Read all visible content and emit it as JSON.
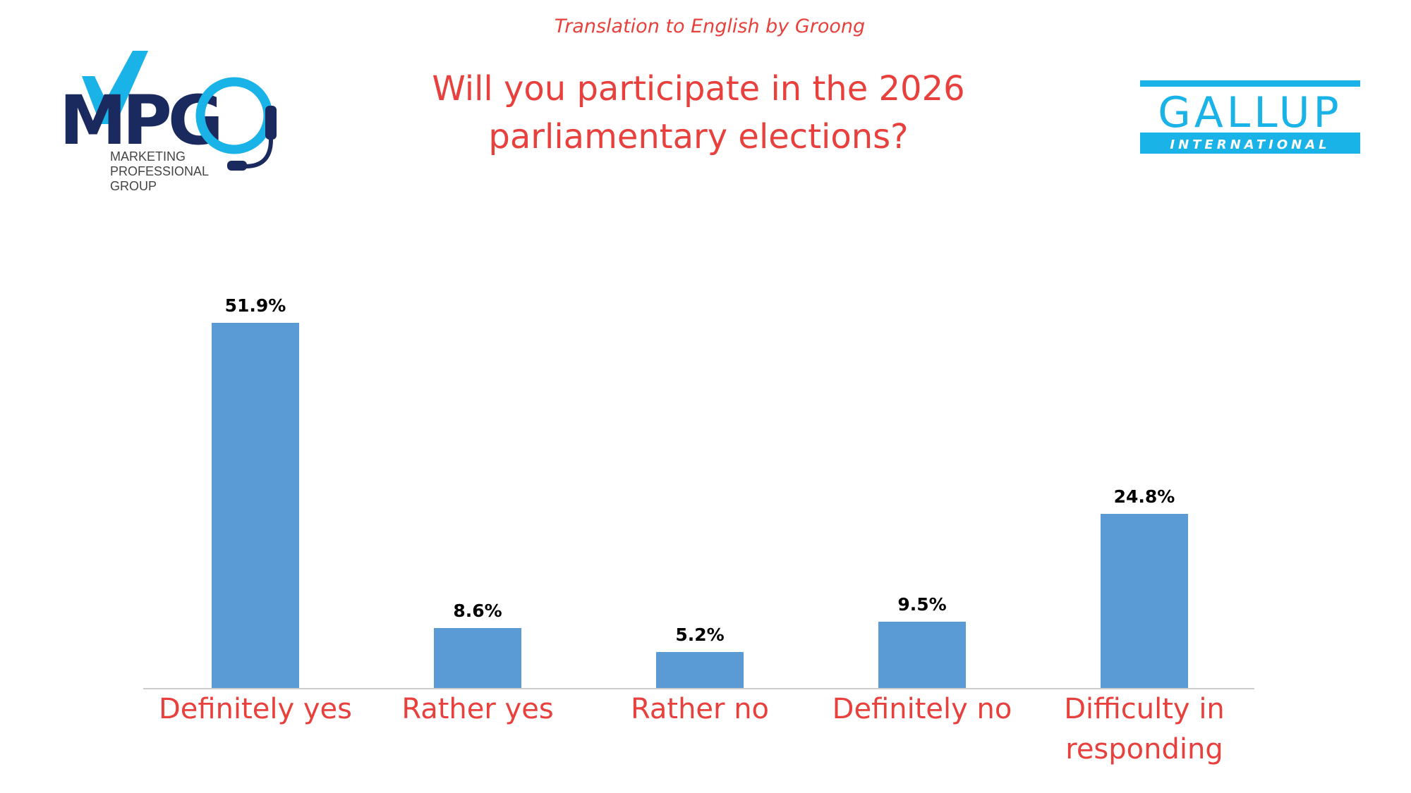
{
  "header": {
    "credit": "Translation to English by Groong",
    "title_line1": "Will you participate in the 2026",
    "title_line2": "parliamentary elections?"
  },
  "logos": {
    "mpg": {
      "mark": "MPG",
      "line1": "MARKETING",
      "line2": "PROFESSIONAL",
      "line3": "GROUP"
    },
    "gallup": {
      "line1": "GALLUP",
      "line2": "INTERNATIONAL"
    }
  },
  "colors": {
    "bar": "#5b9bd5",
    "accent": "#e8403c",
    "axis": "#cccccc",
    "mpg_navy": "#1a2a5e",
    "mpg_cyan": "#1ab3e8",
    "gallup_cyan": "#1ab3e8"
  },
  "chart_data": {
    "type": "bar",
    "title": "Will you participate in the 2026 parliamentary elections?",
    "categories": [
      [
        "Definitely yes"
      ],
      [
        "Rather yes"
      ],
      [
        "Rather no"
      ],
      [
        "Definitely no"
      ],
      [
        "Difficulty in",
        "responding"
      ]
    ],
    "values": [
      51.9,
      8.6,
      5.2,
      9.5,
      24.8
    ],
    "value_labels": [
      "51.9%",
      "8.6%",
      "5.2%",
      "9.5%",
      "24.8%"
    ],
    "ylim": [
      0,
      51.9
    ],
    "grid": false,
    "legend": "none"
  }
}
